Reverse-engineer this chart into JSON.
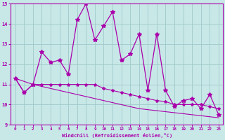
{
  "xlabel": "Windchill (Refroidissement éolien,°C)",
  "xlim": [
    -0.5,
    23.5
  ],
  "ylim": [
    9,
    15
  ],
  "yticks": [
    9,
    10,
    11,
    12,
    13,
    14,
    15
  ],
  "xticks": [
    0,
    1,
    2,
    3,
    4,
    5,
    6,
    7,
    8,
    9,
    10,
    11,
    12,
    13,
    14,
    15,
    16,
    17,
    18,
    19,
    20,
    21,
    22,
    23
  ],
  "bg_color": "#c8e8e8",
  "grid_color": "#a0c8c8",
  "line_color": "#aa00aa",
  "hours": [
    0,
    1,
    2,
    3,
    4,
    5,
    6,
    7,
    8,
    9,
    10,
    11,
    12,
    13,
    14,
    15,
    16,
    17,
    18,
    19,
    20,
    21,
    22,
    23
  ],
  "temp": [
    11.3,
    10.6,
    11.0,
    12.6,
    12.1,
    12.2,
    11.5,
    14.2,
    15.0,
    13.2,
    13.9,
    14.6,
    12.2,
    12.5,
    13.5,
    10.7,
    13.5,
    10.7,
    9.9,
    10.2,
    10.3,
    9.8,
    10.5,
    9.5
  ],
  "windchill": [
    11.3,
    10.6,
    11.0,
    11.0,
    11.0,
    11.0,
    11.0,
    11.0,
    11.0,
    11.0,
    10.8,
    10.7,
    10.6,
    10.5,
    10.4,
    10.3,
    10.2,
    10.15,
    10.0,
    10.0,
    10.0,
    10.0,
    9.9,
    9.8
  ],
  "trend": [
    11.3,
    11.15,
    11.0,
    10.9,
    10.8,
    10.7,
    10.6,
    10.5,
    10.4,
    10.3,
    10.2,
    10.1,
    10.0,
    9.9,
    9.8,
    9.75,
    9.7,
    9.65,
    9.6,
    9.55,
    9.5,
    9.45,
    9.4,
    9.35
  ]
}
